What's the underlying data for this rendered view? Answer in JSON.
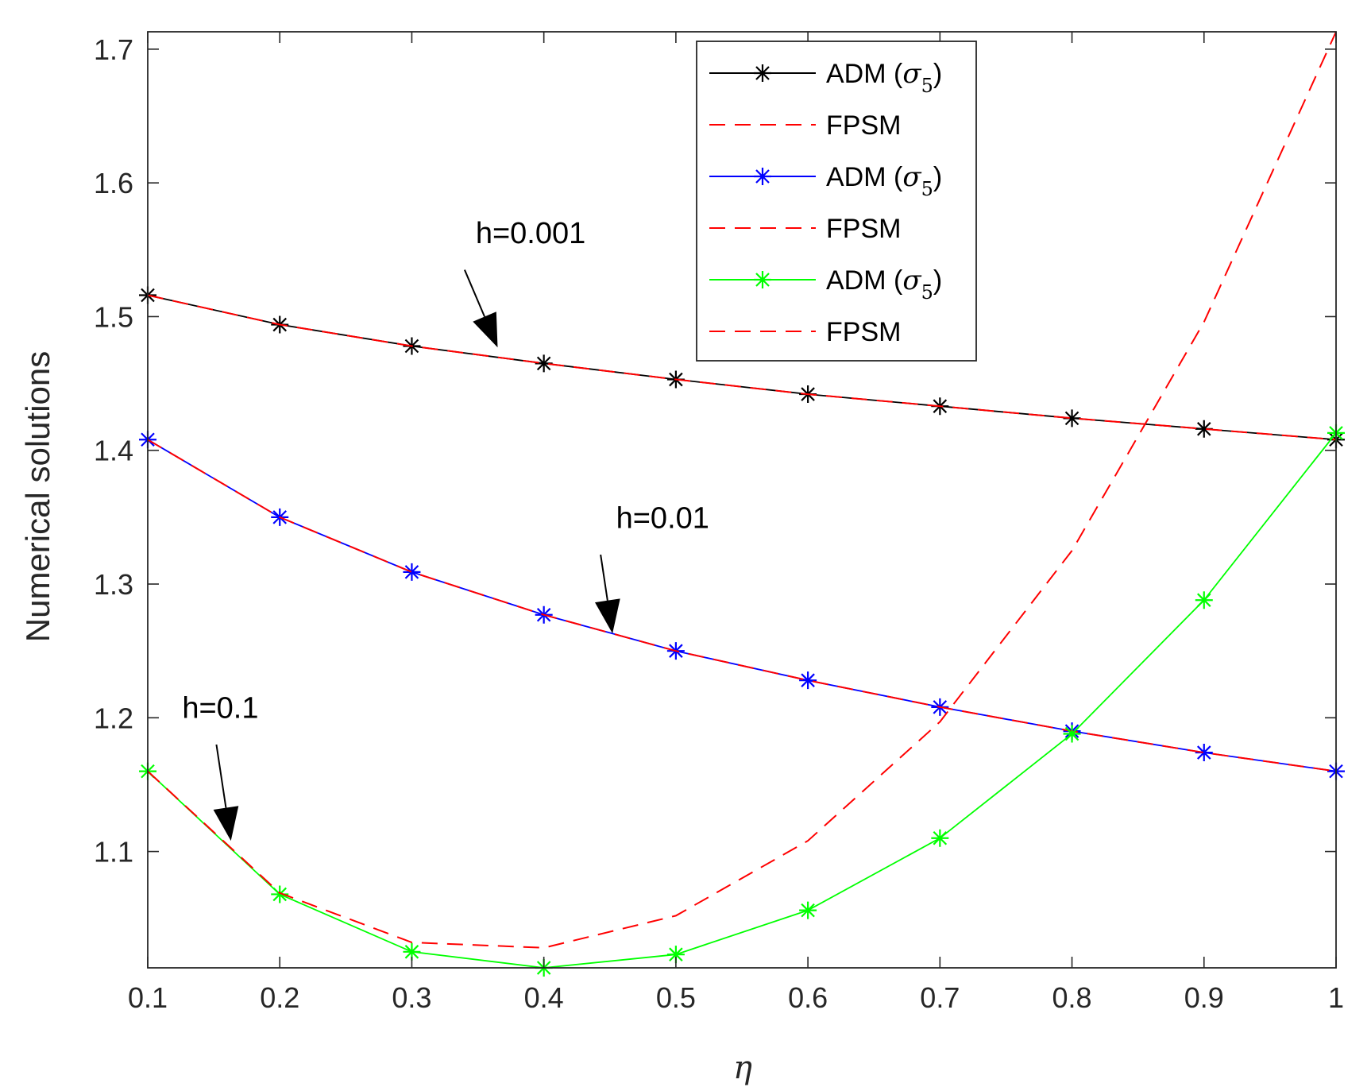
{
  "chart_data": {
    "type": "line",
    "title": "",
    "xlabel": "η",
    "ylabel": "Numerical solutions",
    "xlim": [
      0.1,
      1.0
    ],
    "ylim": [
      1.013,
      1.713
    ],
    "xticks": [
      0.1,
      0.2,
      0.3,
      0.4,
      0.5,
      0.6,
      0.7,
      0.8,
      0.9,
      1.0
    ],
    "xtick_labels": [
      "0.1",
      "0.2",
      "0.3",
      "0.4",
      "0.5",
      "0.6",
      "0.7",
      "0.8",
      "0.9",
      "1"
    ],
    "yticks": [
      1.1,
      1.2,
      1.3,
      1.4,
      1.5,
      1.6,
      1.7
    ],
    "ytick_labels": [
      "1.1",
      "1.2",
      "1.3",
      "1.4",
      "1.5",
      "1.6",
      "1.7"
    ],
    "grid": false,
    "legend_position": "top-right",
    "x": [
      0.1,
      0.2,
      0.3,
      0.4,
      0.5,
      0.6,
      0.7,
      0.8,
      0.9,
      1.0
    ],
    "series": [
      {
        "name": "ADM",
        "legend_sigma": "σ",
        "legend_sub": "5",
        "color": "#000000",
        "style": "solid",
        "marker": "asterisk",
        "values": [
          1.516,
          1.494,
          1.478,
          1.465,
          1.453,
          1.442,
          1.433,
          1.424,
          1.416,
          1.408
        ]
      },
      {
        "name": "FPSM",
        "color": "#ff0000",
        "style": "dashed",
        "marker": "none",
        "values": [
          1.516,
          1.494,
          1.478,
          1.465,
          1.453,
          1.442,
          1.433,
          1.424,
          1.416,
          1.408
        ]
      },
      {
        "name": "ADM",
        "legend_sigma": "σ",
        "legend_sub": "5",
        "color": "#0000ff",
        "style": "solid",
        "marker": "asterisk",
        "values": [
          1.408,
          1.35,
          1.309,
          1.277,
          1.25,
          1.228,
          1.208,
          1.19,
          1.174,
          1.16
        ]
      },
      {
        "name": "FPSM",
        "color": "#ff0000",
        "style": "dashed",
        "marker": "none",
        "values": [
          1.408,
          1.35,
          1.309,
          1.277,
          1.25,
          1.228,
          1.208,
          1.19,
          1.174,
          1.16
        ]
      },
      {
        "name": "ADM",
        "legend_sigma": "σ",
        "legend_sub": "5",
        "color": "#00ff00",
        "style": "solid",
        "marker": "asterisk",
        "values": [
          1.16,
          1.068,
          1.025,
          1.013,
          1.023,
          1.056,
          1.11,
          1.188,
          1.288,
          1.413
        ]
      },
      {
        "name": "FPSM",
        "color": "#ff0000",
        "style": "dashed",
        "marker": "none",
        "values": [
          1.16,
          1.069,
          1.032,
          1.028,
          1.052,
          1.108,
          1.197,
          1.325,
          1.496,
          1.713
        ]
      }
    ],
    "annotations": [
      {
        "text": "h=0.001",
        "text_at": [
          0.39,
          1.555
        ],
        "arrow_from": [
          0.34,
          1.535
        ],
        "arrow_to": [
          0.365,
          1.477
        ]
      },
      {
        "text": "h=0.01",
        "text_at": [
          0.49,
          1.342
        ],
        "arrow_from": [
          0.443,
          1.322
        ],
        "arrow_to": [
          0.452,
          1.263
        ]
      },
      {
        "text": "h=0.1",
        "text_at": [
          0.155,
          1.2
        ],
        "arrow_from": [
          0.152,
          1.18
        ],
        "arrow_to": [
          0.163,
          1.108
        ]
      }
    ]
  }
}
